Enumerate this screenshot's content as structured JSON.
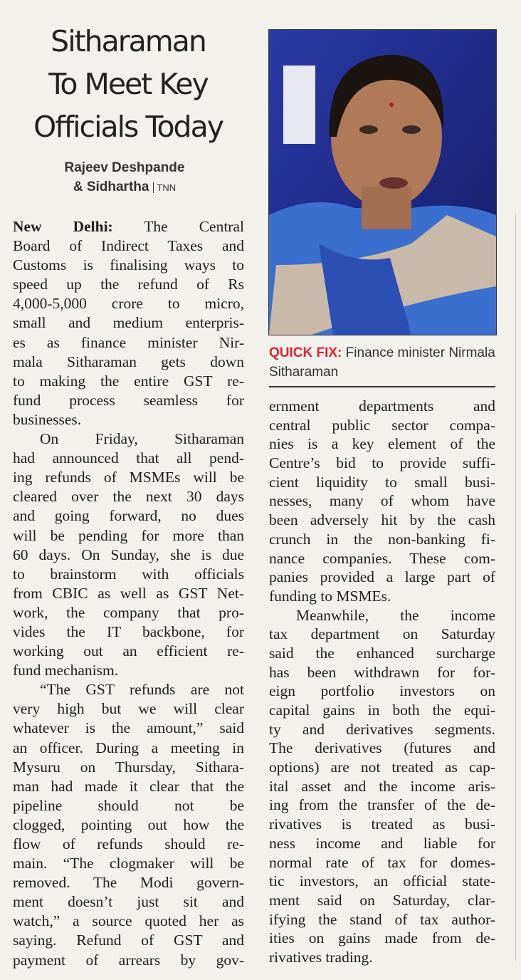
{
  "headline": [
    "Sitharaman",
    "To Meet Key",
    "Officials Today"
  ],
  "byline": {
    "line1": "Rajeev Deshpande",
    "line2": "& Sidhartha",
    "agency": "TNN"
  },
  "photo": {
    "icon": "portrait-photo"
  },
  "caption": {
    "label": "QUICK FIX:",
    "text": "Finance minister Nirmala Sitharaman"
  },
  "colors": {
    "caption_label": "#d8262b",
    "photo_bg": "#1d2a8a"
  },
  "article": {
    "dateline": "New Delhi:",
    "left": [
      {
        "lines": [
          "The Central",
          "Board of Indirect Taxes and",
          "Customs is finalising ways to",
          "speed up the refund of Rs",
          "4,000-5,000 crore to micro,",
          "small and medium enterpris-",
          "es as finance minister Nir-",
          "mala Sitharaman gets down",
          "to making the entire GST re-",
          "fund process seamless for",
          "businesses."
        ]
      },
      {
        "lines": [
          "On Friday, Sitharaman",
          "had announced that all pend-",
          "ing refunds of MSMEs will be",
          "cleared over the next 30 days",
          "and going forward, no dues",
          "will be pending for more than",
          "60 days. On Sunday, she is due",
          "to brainstorm with officials",
          "from CBIC as well as GST Net-",
          "work, the company that pro-",
          "vides the IT backbone, for",
          "working out an efficient re-",
          "fund mechanism."
        ]
      },
      {
        "lines": [
          "“The GST refunds are not",
          "very high but we will clear",
          "whatever is the amount,” said",
          "an officer. During a meeting in",
          "Mysuru on Thursday, Sithara-",
          "man had made it clear that the",
          "pipeline should not be",
          "clogged, pointing out how the",
          "flow of refunds should re-",
          "main. “The clogmaker will be",
          "removed. The Modi govern-",
          "ment doesn’t just sit and",
          "watch,” a source quoted her as",
          "saying. Refund of GST and",
          "payment of arrears by gov-"
        ],
        "cont": true
      }
    ],
    "right": [
      {
        "lines": [
          "ernment departments and",
          "central public sector compa-",
          "nies is a key element of the",
          "Centre’s bid to provide suffi-",
          "cient liquidity to small busi-",
          "nesses, many of whom have",
          "been adversely hit by the cash",
          "crunch in the non-banking fi-",
          "nance companies. These com-",
          "panies provided a large part of",
          "funding to MSMEs."
        ],
        "noindent": true
      },
      {
        "lines": [
          "Meanwhile, the income",
          "tax department on Saturday",
          "said the enhanced surcharge",
          "has been withdrawn for for-",
          "eign portfolio investors on",
          "capital gains in both the equi-",
          "ty and derivatives segments.",
          "The derivatives (futures and",
          "options) are not treated as cap-",
          "ital asset and the income aris-",
          "ing from the transfer of the de-",
          "rivatives is treated as busi-",
          "ness income and liable for",
          "normal rate of tax for domes-",
          "tic investors, an official state-",
          "ment said on Saturday, clar-",
          "ifying the stand of tax author-",
          "ities on gains made from de-",
          "rivatives trading."
        ]
      }
    ]
  }
}
